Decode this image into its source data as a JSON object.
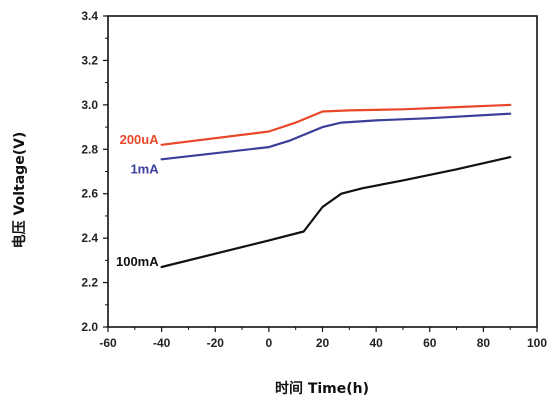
{
  "chart_data": {
    "type": "line",
    "xlabel": "时间 Time(h)",
    "ylabel": "电压 Voltage(V)",
    "xlim": [
      -60,
      100
    ],
    "ylim": [
      2.0,
      3.4
    ],
    "x_ticks": [
      "-60",
      "-40",
      "-20",
      "0",
      "20",
      "40",
      "60",
      "80",
      "100"
    ],
    "y_ticks": [
      "2.0",
      "2.2",
      "2.4",
      "2.6",
      "2.8",
      "3.0",
      "3.2",
      "3.4"
    ],
    "x_tick_values": [
      -60,
      -40,
      -20,
      0,
      20,
      40,
      60,
      80,
      100
    ],
    "y_tick_values": [
      2.0,
      2.2,
      2.4,
      2.6,
      2.8,
      3.0,
      3.2,
      3.4
    ],
    "grid": false,
    "series": [
      {
        "name": "200uA",
        "color": "#e8472a",
        "x": [
          -40,
          0,
          10,
          20,
          30,
          50,
          70,
          90
        ],
        "y": [
          2.82,
          2.88,
          2.92,
          2.97,
          2.975,
          2.98,
          2.99,
          3.0
        ]
      },
      {
        "name": "1mA",
        "color": "#3a3f9a",
        "x": [
          -40,
          0,
          8,
          20,
          27,
          40,
          60,
          90
        ],
        "y": [
          2.755,
          2.81,
          2.84,
          2.9,
          2.92,
          2.93,
          2.94,
          2.96
        ]
      },
      {
        "name": "100mA",
        "color": "#111111",
        "x": [
          -40,
          0,
          13,
          20,
          27,
          35,
          50,
          70,
          90
        ],
        "y": [
          2.27,
          2.39,
          2.43,
          2.54,
          2.6,
          2.625,
          2.66,
          2.71,
          2.765
        ]
      }
    ]
  }
}
